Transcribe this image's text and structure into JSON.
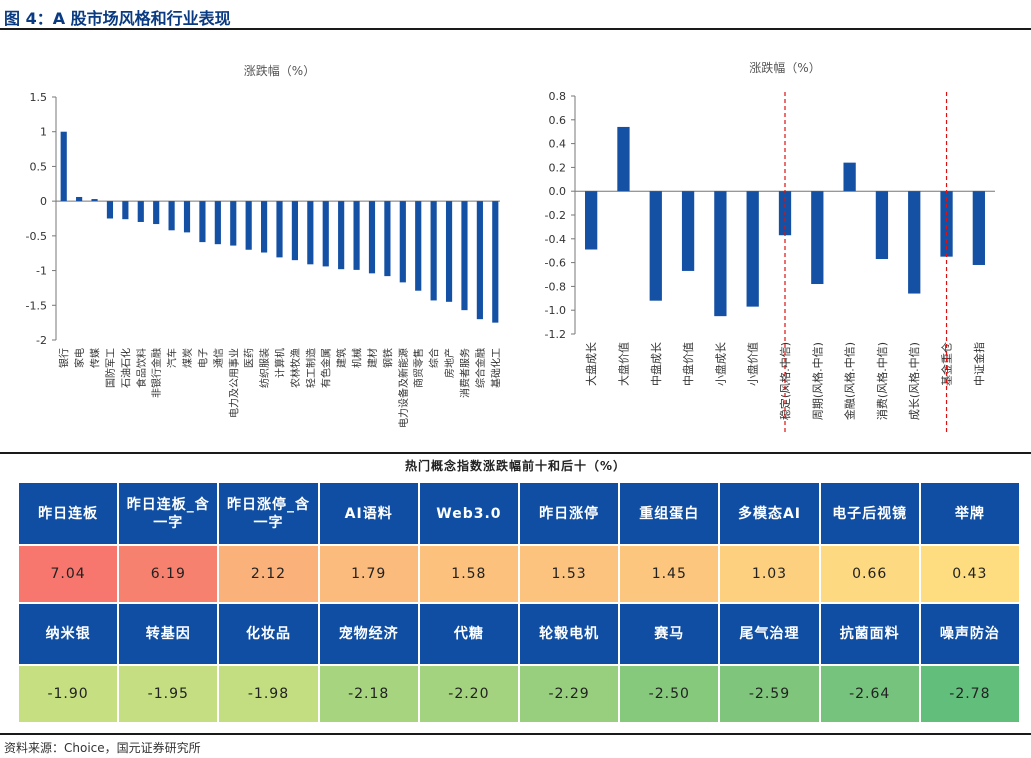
{
  "figure_title": "图 4：A 股市场风格和行业表现",
  "chart_data": [
    {
      "type": "bar",
      "title": "涨跌幅（%）",
      "categories": [
        "银行",
        "家电",
        "传媒",
        "国防军工",
        "石油石化",
        "食品饮料",
        "非银行金融",
        "汽车",
        "煤炭",
        "电子",
        "通信",
        "电力及公用事业",
        "医药",
        "纺织服装",
        "计算机",
        "农林牧渔",
        "轻工制造",
        "有色金属",
        "建筑",
        "机械",
        "建材",
        "钢铁",
        "电力设备及新能源",
        "商贸零售",
        "综合",
        "房地产",
        "消费者服务",
        "综合金融",
        "基础化工"
      ],
      "values": [
        1.0,
        0.06,
        0.03,
        -0.25,
        -0.26,
        -0.3,
        -0.33,
        -0.42,
        -0.45,
        -0.59,
        -0.62,
        -0.64,
        -0.7,
        -0.74,
        -0.81,
        -0.85,
        -0.91,
        -0.94,
        -0.98,
        -0.99,
        -1.04,
        -1.08,
        -1.17,
        -1.29,
        -1.43,
        -1.45,
        -1.57,
        -1.7,
        -1.75
      ],
      "ylim": [
        -2,
        1.5
      ],
      "yticks": [
        "1.5",
        "1",
        "0.5",
        "0",
        "-0.5",
        "-1",
        "-1.5",
        "-2"
      ],
      "ytick_values": [
        1.5,
        1,
        0.5,
        0,
        -0.5,
        -1,
        -1.5,
        -2
      ],
      "color": "#1450a3"
    },
    {
      "type": "bar",
      "title": "涨跌幅（%）",
      "categories": [
        "大盘成长",
        "大盘价值",
        "中盘成长",
        "中盘价值",
        "小盘成长",
        "小盘价值",
        "稳定(风格.中信)",
        "周期(风格.中信)",
        "金融(风格.中信)",
        "消费(风格.中信)",
        "成长(风格.中信)",
        "基金重仓",
        "中证金指"
      ],
      "values": [
        -0.49,
        0.54,
        -0.92,
        -0.67,
        -1.05,
        -0.97,
        -0.37,
        -0.78,
        0.24,
        -0.57,
        -0.86,
        -0.55,
        -0.62
      ],
      "ylim": [
        -1.2,
        0.8
      ],
      "yticks": [
        "0.8",
        "0.6",
        "0.4",
        "0.2",
        "0.0",
        "-0.2",
        "-0.4",
        "-0.6",
        "-0.8",
        "-1.0",
        "-1.2"
      ],
      "ytick_values": [
        0.8,
        0.6,
        0.4,
        0.2,
        0.0,
        -0.2,
        -0.4,
        -0.6,
        -0.8,
        -1.0,
        -1.2
      ],
      "separators_after": [
        6,
        11
      ],
      "color": "#1450a3"
    }
  ],
  "table": {
    "title": "热门概念指数涨跌幅前十和后十（%）",
    "top_names": [
      "昨日连板",
      "昨日连板_含一字",
      "昨日涨停_含一字",
      "AI语料",
      "Web3.0",
      "昨日涨停",
      "重组蛋白",
      "多模态AI",
      "电子后视镜",
      "举牌"
    ],
    "top_values": [
      "7.04",
      "6.19",
      "2.12",
      "1.79",
      "1.58",
      "1.53",
      "1.45",
      "1.03",
      "0.66",
      "0.43"
    ],
    "top_colors": [
      "#f7766e",
      "#f7816f",
      "#fbb17a",
      "#fbbb7c",
      "#fcc17d",
      "#fcc37e",
      "#fcc67e",
      "#fcd07f",
      "#fdd981",
      "#fedd81"
    ],
    "bottom_names": [
      "纳米银",
      "转基因",
      "化妆品",
      "宠物经济",
      "代糖",
      "轮毂电机",
      "赛马",
      "尾气治理",
      "抗菌面料",
      "噪声防治"
    ],
    "bottom_values": [
      "-1.90",
      "-1.95",
      "-1.98",
      "-2.18",
      "-2.20",
      "-2.29",
      "-2.50",
      "-2.59",
      "-2.64",
      "-2.78"
    ],
    "bottom_colors": [
      "#c6df81",
      "#c4de81",
      "#c2de81",
      "#a6d47f",
      "#a4d37f",
      "#97cf7e",
      "#86c97d",
      "#7fc67c",
      "#75c37c",
      "#62be7b"
    ]
  },
  "source": "资料来源：Choice，国元证券研究所"
}
